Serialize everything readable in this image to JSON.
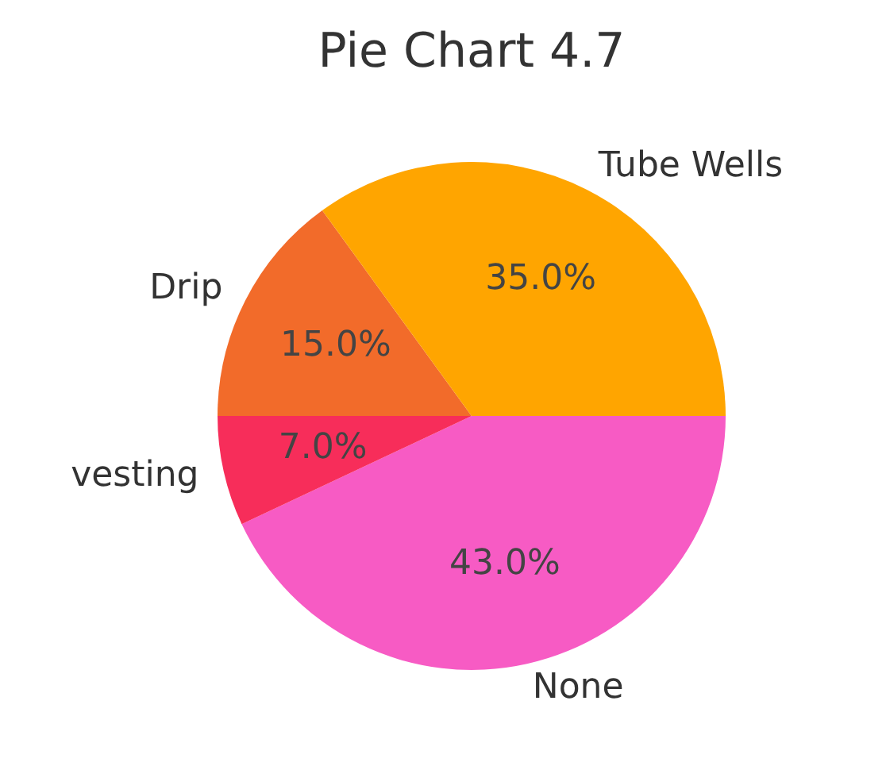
{
  "chart_data": {
    "type": "pie",
    "title": "Pie Chart 4.7",
    "categories": [
      "Tube Wells",
      "Drip",
      "vesting",
      "None"
    ],
    "values": [
      35,
      15,
      7,
      43
    ],
    "colors": [
      "#ffa500",
      "#f26b2a",
      "#f72d5a",
      "#f75bc4"
    ],
    "value_labels": [
      "35.0%",
      "15.0%",
      "7.0%",
      "43.0%"
    ],
    "legend": false
  }
}
